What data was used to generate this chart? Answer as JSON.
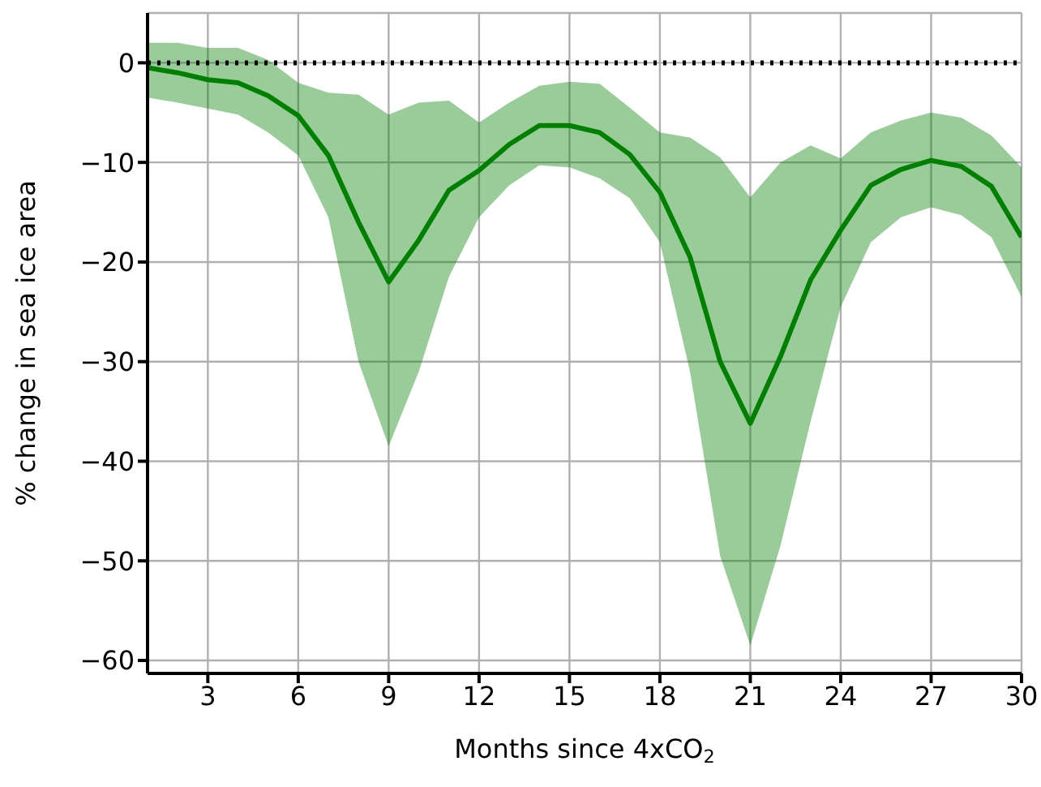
{
  "chart_data": {
    "type": "line",
    "xlabel": "Months since 4xCO$_{2}$",
    "ylabel": "% change in sea ice area",
    "x": [
      1,
      2,
      3,
      4,
      5,
      6,
      7,
      8,
      9,
      10,
      11,
      12,
      13,
      14,
      15,
      16,
      17,
      18,
      19,
      20,
      21,
      22,
      23,
      24,
      25,
      26,
      27,
      28,
      29,
      30
    ],
    "series": [
      {
        "color": "#008000",
        "values": [
          -0.5,
          -1,
          -1.7,
          -2,
          -3.3,
          -5.3,
          -9.3,
          -16,
          -22,
          -17.8,
          -12.8,
          -10.8,
          -8.2,
          -6.3,
          -6.3,
          -7,
          -9.2,
          -13,
          -19.5,
          -30,
          -36.2,
          -29.5,
          -21.8,
          -16.8,
          -12.3,
          -10.7,
          -9.8,
          -10.4,
          -12.4,
          -17.5
        ],
        "lower": [
          -3.5,
          -4,
          -4.6,
          -5.2,
          -7,
          -9.3,
          -15.5,
          -30,
          -38.5,
          -31,
          -21.5,
          -15.5,
          -12.3,
          -10.3,
          -10.5,
          -11.6,
          -13.6,
          -18,
          -31,
          -49.5,
          -58.5,
          -48.5,
          -36,
          -24.5,
          -18,
          -15.5,
          -14.5,
          -15.3,
          -17.5,
          -23.5
        ],
        "upper": [
          2,
          2,
          1.5,
          1.5,
          0.3,
          -2,
          -3,
          -3.2,
          -5.2,
          -4,
          -3.8,
          -6,
          -4,
          -2.3,
          -1.9,
          -2.1,
          -4.5,
          -7,
          -7.5,
          -9.5,
          -13.5,
          -10,
          -8.3,
          -9.6,
          -7,
          -5.8,
          -5,
          -5.5,
          -7.3,
          -10.5
        ]
      }
    ],
    "xlim": [
      1,
      30
    ],
    "xticks": [
      3,
      6,
      9,
      12,
      15,
      18,
      21,
      24,
      27,
      30
    ],
    "ylim": [
      -61.3,
      5
    ],
    "yticks": [
      {
        "value": -60,
        "label": "−60"
      },
      {
        "value": -50,
        "label": "−50"
      },
      {
        "value": -40,
        "label": "−40"
      },
      {
        "value": -30,
        "label": "−30"
      },
      {
        "value": -20,
        "label": "−20"
      },
      {
        "value": -10,
        "label": "−10"
      },
      0
    ],
    "ref_lines": [
      {
        "axis": "y",
        "value": 0,
        "color": "#000000",
        "line_style": "dotted"
      }
    ],
    "grid": true,
    "marker": "none",
    "line_style": "solid",
    "legend": false
  }
}
